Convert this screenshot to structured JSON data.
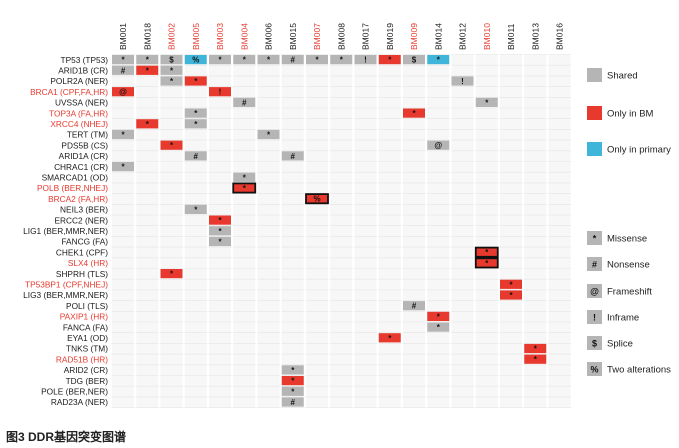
{
  "colors": {
    "shared": "#b5b5b5",
    "bm_only": "#e8392e",
    "primary_only": "#3fb6d9",
    "grid": "#e4e4e4",
    "red_label": "#e8392e",
    "black_label": "#1a1a1a"
  },
  "samples": [
    {
      "id": "BM001",
      "red": false
    },
    {
      "id": "BM018",
      "red": false
    },
    {
      "id": "BM002",
      "red": true
    },
    {
      "id": "BM005",
      "red": true
    },
    {
      "id": "BM003",
      "red": true
    },
    {
      "id": "BM004",
      "red": true
    },
    {
      "id": "BM006",
      "red": false
    },
    {
      "id": "BM015",
      "red": false
    },
    {
      "id": "BM007",
      "red": true
    },
    {
      "id": "BM008",
      "red": false
    },
    {
      "id": "BM017",
      "red": false
    },
    {
      "id": "BM019",
      "red": false
    },
    {
      "id": "BM009",
      "red": true
    },
    {
      "id": "BM014",
      "red": false
    },
    {
      "id": "BM012",
      "red": false
    },
    {
      "id": "BM010",
      "red": true
    },
    {
      "id": "BM011",
      "red": false
    },
    {
      "id": "BM013",
      "red": false
    },
    {
      "id": "BM016",
      "red": false
    }
  ],
  "genes": [
    {
      "label": "TP53 (TP53)",
      "red": false
    },
    {
      "label": "ARID1B (CR)",
      "red": false
    },
    {
      "label": "POLR2A (NER)",
      "red": false
    },
    {
      "label": "BRCA1 (CPF,FA,HR)",
      "red": true
    },
    {
      "label": "UVSSA (NER)",
      "red": false
    },
    {
      "label": "TOP3A (FA,HR)",
      "red": true
    },
    {
      "label": "XRCC4 (NHEJ)",
      "red": true
    },
    {
      "label": "TERT (TM)",
      "red": false
    },
    {
      "label": "PDS5B (CS)",
      "red": false
    },
    {
      "label": "ARID1A (CR)",
      "red": false
    },
    {
      "label": "CHRAC1 (CR)",
      "red": false
    },
    {
      "label": "SMARCAD1 (OD)",
      "red": false
    },
    {
      "label": "POLB (BER,NHEJ)",
      "red": true
    },
    {
      "label": "BRCA2 (FA,HR)",
      "red": true
    },
    {
      "label": "NEIL3 (BER)",
      "red": false
    },
    {
      "label": "ERCC2 (NER)",
      "red": false
    },
    {
      "label": "LIG1 (BER,MMR,NER)",
      "red": false
    },
    {
      "label": "FANCG (FA)",
      "red": false
    },
    {
      "label": "CHEK1 (CPF)",
      "red": false
    },
    {
      "label": "SLX4 (HR)",
      "red": true
    },
    {
      "label": "SHPRH (TLS)",
      "red": false
    },
    {
      "label": "TP53BP1 (CPF,NHEJ)",
      "red": true
    },
    {
      "label": "LIG3 (BER,MMR,NER)",
      "red": false
    },
    {
      "label": "POLI (TLS)",
      "red": false
    },
    {
      "label": "PAXIP1 (HR)",
      "red": true
    },
    {
      "label": "FANCA (FA)",
      "red": false
    },
    {
      "label": "EYA1 (OD)",
      "red": false
    },
    {
      "label": "TNKS (TM)",
      "red": false
    },
    {
      "label": "RAD51B (HR)",
      "red": true
    },
    {
      "label": "ARID2 (CR)",
      "red": false
    },
    {
      "label": "TDG (BER)",
      "red": false
    },
    {
      "label": "POLE (BER,NER)",
      "red": false
    },
    {
      "label": "RAD23A (NER)",
      "red": false
    }
  ],
  "cells": [
    {
      "g": 0,
      "s": 0,
      "c": "shared",
      "m": "*"
    },
    {
      "g": 0,
      "s": 1,
      "c": "shared",
      "m": "*"
    },
    {
      "g": 0,
      "s": 2,
      "c": "shared",
      "m": "$"
    },
    {
      "g": 0,
      "s": 3,
      "c": "primary_only",
      "m": "%"
    },
    {
      "g": 0,
      "s": 4,
      "c": "shared",
      "m": "*"
    },
    {
      "g": 0,
      "s": 5,
      "c": "shared",
      "m": "*"
    },
    {
      "g": 0,
      "s": 6,
      "c": "shared",
      "m": "*"
    },
    {
      "g": 0,
      "s": 7,
      "c": "shared",
      "m": "#"
    },
    {
      "g": 0,
      "s": 8,
      "c": "shared",
      "m": "*"
    },
    {
      "g": 0,
      "s": 9,
      "c": "shared",
      "m": "*"
    },
    {
      "g": 0,
      "s": 10,
      "c": "shared",
      "m": "!"
    },
    {
      "g": 0,
      "s": 11,
      "c": "bm_only",
      "m": "*"
    },
    {
      "g": 0,
      "s": 12,
      "c": "shared",
      "m": "$"
    },
    {
      "g": 0,
      "s": 13,
      "c": "primary_only",
      "m": "*"
    },
    {
      "g": 1,
      "s": 0,
      "c": "shared",
      "m": "#"
    },
    {
      "g": 1,
      "s": 1,
      "c": "bm_only",
      "m": "*"
    },
    {
      "g": 1,
      "s": 2,
      "c": "shared",
      "m": "*"
    },
    {
      "g": 2,
      "s": 2,
      "c": "shared",
      "m": "*"
    },
    {
      "g": 2,
      "s": 3,
      "c": "bm_only",
      "m": "*"
    },
    {
      "g": 2,
      "s": 14,
      "c": "shared",
      "m": "!"
    },
    {
      "g": 3,
      "s": 0,
      "c": "bm_only",
      "m": "@"
    },
    {
      "g": 3,
      "s": 4,
      "c": "bm_only",
      "m": "!"
    },
    {
      "g": 4,
      "s": 5,
      "c": "shared",
      "m": "#"
    },
    {
      "g": 4,
      "s": 15,
      "c": "shared",
      "m": "*"
    },
    {
      "g": 5,
      "s": 3,
      "c": "shared",
      "m": "*"
    },
    {
      "g": 5,
      "s": 12,
      "c": "bm_only",
      "m": "*"
    },
    {
      "g": 6,
      "s": 1,
      "c": "bm_only",
      "m": "*"
    },
    {
      "g": 6,
      "s": 3,
      "c": "shared",
      "m": "*"
    },
    {
      "g": 7,
      "s": 0,
      "c": "shared",
      "m": "*"
    },
    {
      "g": 7,
      "s": 6,
      "c": "shared",
      "m": "*"
    },
    {
      "g": 8,
      "s": 2,
      "c": "bm_only",
      "m": "*"
    },
    {
      "g": 8,
      "s": 13,
      "c": "shared",
      "m": "@"
    },
    {
      "g": 9,
      "s": 3,
      "c": "shared",
      "m": "#"
    },
    {
      "g": 9,
      "s": 7,
      "c": "shared",
      "m": "#"
    },
    {
      "g": 10,
      "s": 0,
      "c": "shared",
      "m": "*"
    },
    {
      "g": 11,
      "s": 5,
      "c": "shared",
      "m": "*"
    },
    {
      "g": 12,
      "s": 5,
      "c": "bm_only",
      "m": "*",
      "box": true
    },
    {
      "g": 13,
      "s": 8,
      "c": "bm_only",
      "m": "%",
      "box": true
    },
    {
      "g": 14,
      "s": 3,
      "c": "shared",
      "m": "*"
    },
    {
      "g": 15,
      "s": 4,
      "c": "bm_only",
      "m": "*"
    },
    {
      "g": 16,
      "s": 4,
      "c": "shared",
      "m": "*"
    },
    {
      "g": 17,
      "s": 4,
      "c": "shared",
      "m": "*"
    },
    {
      "g": 18,
      "s": 15,
      "c": "bm_only",
      "m": "*",
      "box": true
    },
    {
      "g": 19,
      "s": 15,
      "c": "bm_only",
      "m": "*",
      "box": true
    },
    {
      "g": 20,
      "s": 2,
      "c": "bm_only",
      "m": "*"
    },
    {
      "g": 21,
      "s": 16,
      "c": "bm_only",
      "m": "*"
    },
    {
      "g": 22,
      "s": 16,
      "c": "bm_only",
      "m": "*"
    },
    {
      "g": 23,
      "s": 12,
      "c": "shared",
      "m": "#"
    },
    {
      "g": 24,
      "s": 13,
      "c": "bm_only",
      "m": "*"
    },
    {
      "g": 25,
      "s": 13,
      "c": "shared",
      "m": "*"
    },
    {
      "g": 26,
      "s": 11,
      "c": "bm_only",
      "m": "*"
    },
    {
      "g": 27,
      "s": 17,
      "c": "bm_only",
      "m": "*"
    },
    {
      "g": 28,
      "s": 17,
      "c": "bm_only",
      "m": "*"
    },
    {
      "g": 29,
      "s": 7,
      "c": "shared",
      "m": "*"
    },
    {
      "g": 30,
      "s": 7,
      "c": "bm_only",
      "m": "*"
    },
    {
      "g": 31,
      "s": 7,
      "c": "shared",
      "m": "*"
    },
    {
      "g": 32,
      "s": 7,
      "c": "shared",
      "m": "#"
    }
  ],
  "legend_colors": [
    {
      "key": "shared",
      "label": "Shared"
    },
    {
      "key": "bm_only",
      "label": "Only in BM"
    },
    {
      "key": "primary_only",
      "label": "Only in primary"
    }
  ],
  "legend_marks": [
    {
      "symbol": "*",
      "label": "Missense"
    },
    {
      "symbol": "#",
      "label": "Nonsense"
    },
    {
      "symbol": "@",
      "label": "Frameshift"
    },
    {
      "symbol": "!",
      "label": "Inframe"
    },
    {
      "symbol": "$",
      "label": "Splice"
    },
    {
      "symbol": "%",
      "label": "Two alterations"
    }
  ],
  "caption": "图3 DDR基因突变图谱"
}
